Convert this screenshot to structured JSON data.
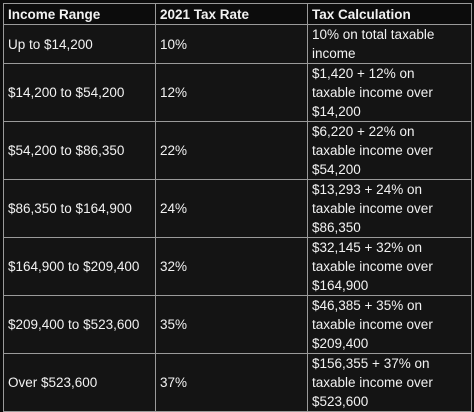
{
  "table": {
    "headers": [
      "Income Range",
      "2021 Tax Rate",
      "Tax Calculation"
    ],
    "rows": [
      {
        "range": "Up to $14,200",
        "rate": "10%",
        "calc": [
          "10% on total taxable",
          "income"
        ]
      },
      {
        "range": "$14,200 to $54,200",
        "rate": "12%",
        "calc": [
          "$1,420 + 12% on",
          "taxable income over",
          "$14,200"
        ]
      },
      {
        "range": "$54,200 to $86,350",
        "rate": "22%",
        "calc": [
          "$6,220 + 22% on",
          "taxable income over",
          "$54,200"
        ]
      },
      {
        "range": "$86,350 to $164,900",
        "rate": "24%",
        "calc": [
          "$13,293 + 24% on",
          "taxable income over",
          "$86,350"
        ]
      },
      {
        "range": "$164,900 to $209,400",
        "rate": "32%",
        "calc": [
          "$32,145 + 32% on",
          "taxable income over",
          "$164,900"
        ]
      },
      {
        "range": "$209,400 to $523,600",
        "rate": "35%",
        "calc": [
          "$46,385 + 35% on",
          "taxable income over",
          "$209,400"
        ]
      },
      {
        "range": "Over $523,600",
        "rate": "37%",
        "calc": [
          "$156,355 + 37% on",
          "taxable income over",
          "$523,600"
        ]
      }
    ]
  }
}
